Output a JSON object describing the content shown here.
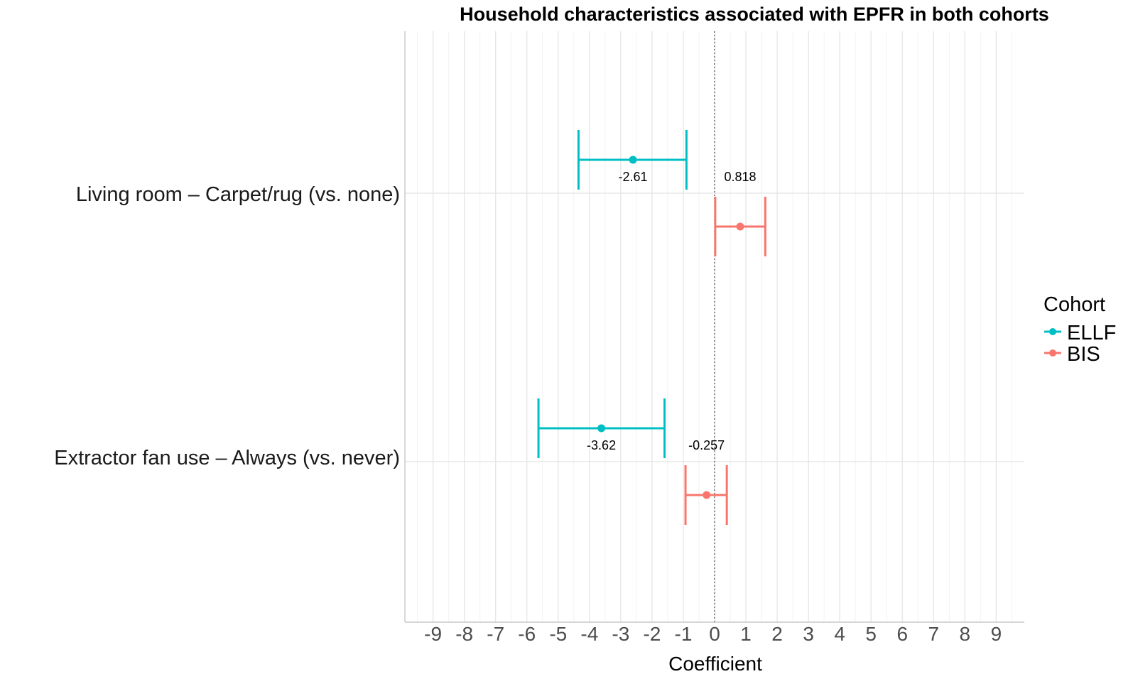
{
  "chart_data": {
    "type": "forest",
    "title": "Household characteristics associated with EPFR in both cohorts",
    "xlabel": "Coefficient",
    "ylabel": "",
    "xlim": [
      -9.9,
      9.9
    ],
    "x_ticks": [
      -9,
      -8,
      -7,
      -6,
      -5,
      -4,
      -3,
      -2,
      -1,
      0,
      1,
      2,
      3,
      4,
      5,
      6,
      7,
      8,
      9
    ],
    "reference_line": 0,
    "grid": true,
    "categories": [
      "Living room – Carpet/rug (vs. none)",
      "Extractor fan use – Always (vs. never)"
    ],
    "legend": {
      "title": "Cohort",
      "position": "right",
      "entries": [
        {
          "name": "ELLF",
          "color": "#00BFC4"
        },
        {
          "name": "BIS",
          "color": "#F8766D"
        }
      ]
    },
    "series": [
      {
        "name": "ELLF",
        "color": "#00BFC4",
        "points": [
          {
            "category": "Living room – Carpet/rug (vs. none)",
            "estimate": -2.61,
            "lower": -4.35,
            "upper": -0.9,
            "label": "-2.61"
          },
          {
            "category": "Extractor fan use – Always (vs. never)",
            "estimate": -3.62,
            "lower": -5.63,
            "upper": -1.6,
            "label": "-3.62"
          }
        ]
      },
      {
        "name": "BIS",
        "color": "#F8766D",
        "points": [
          {
            "category": "Living room – Carpet/rug (vs. none)",
            "estimate": 0.818,
            "lower": 0.02,
            "upper": 1.62,
            "label": "0.818"
          },
          {
            "category": "Extractor fan use – Always (vs. never)",
            "estimate": -0.257,
            "lower": -0.93,
            "upper": 0.39,
            "label": "-0.257"
          }
        ]
      }
    ]
  }
}
